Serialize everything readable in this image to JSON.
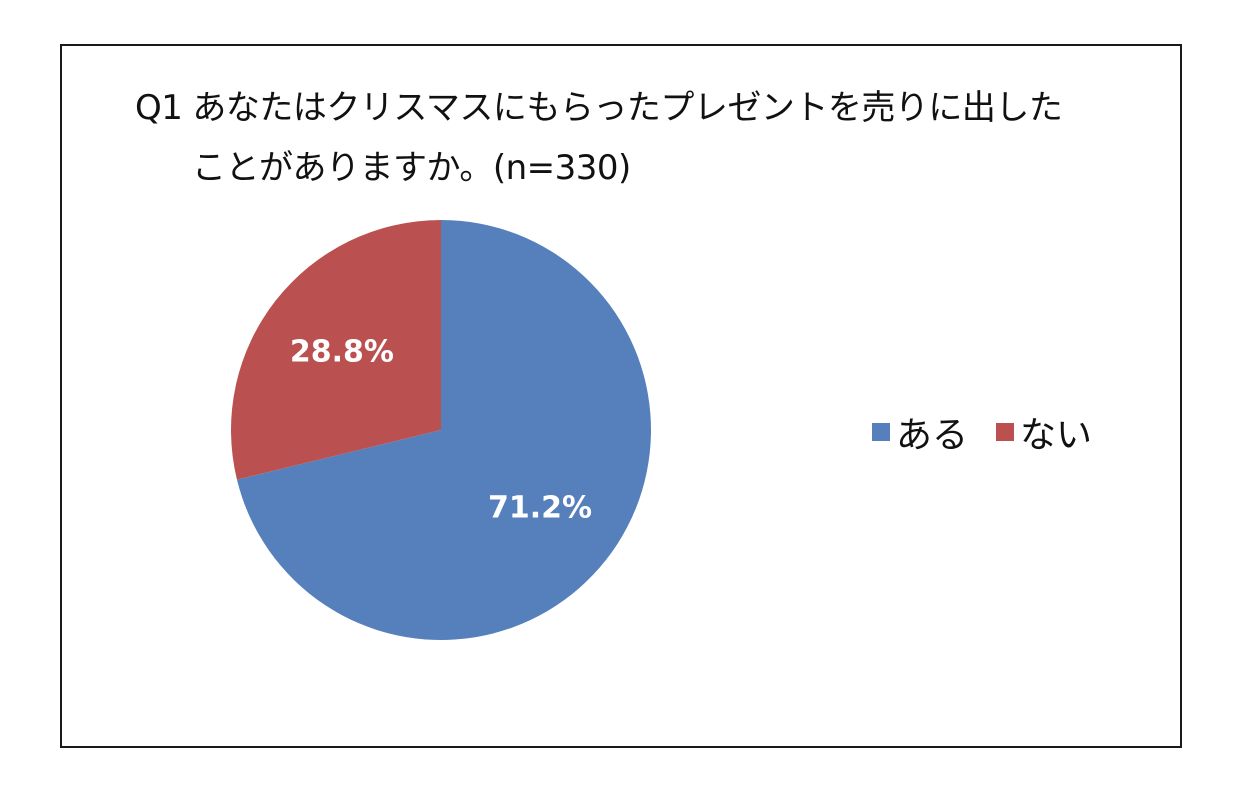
{
  "title": {
    "qid": "Q1",
    "line1": "あなたはクリスマスにもらったプレゼントを売りに出した",
    "line2": "ことがありますか。(n=330)"
  },
  "chart_data": {
    "type": "pie",
    "slices": [
      {
        "label": "ある",
        "value": 71.2,
        "value_label": "71.2%",
        "color": "#5580BC"
      },
      {
        "label": "ない",
        "value": 28.8,
        "value_label": "28.8%",
        "color": "#BA5150"
      }
    ],
    "legend_position": "right"
  }
}
